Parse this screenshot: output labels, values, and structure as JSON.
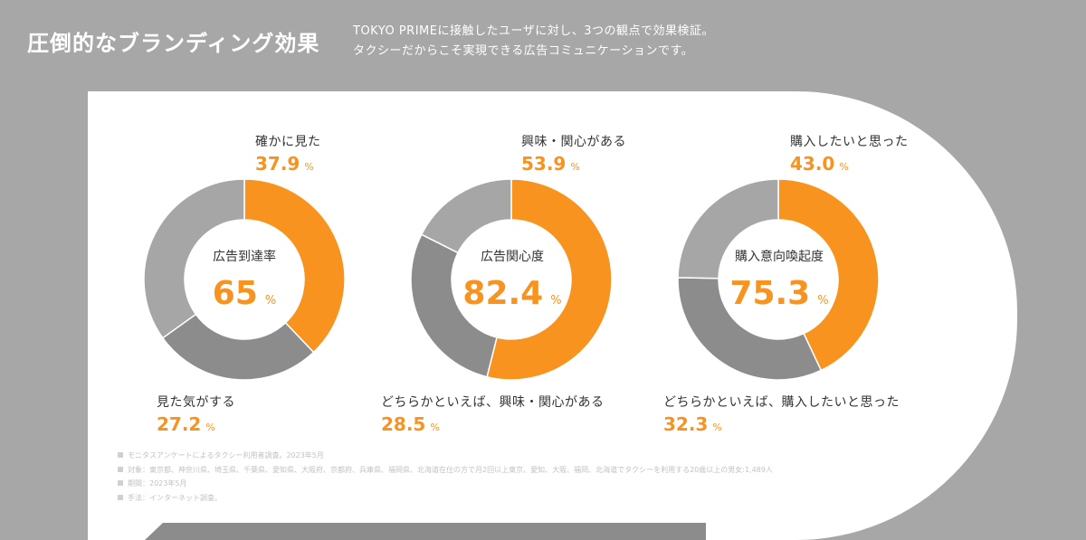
{
  "header": {
    "title": "圧倒的なブランディング効果",
    "subtitle_line1": "TOKYO PRIMEに接触したユーザに対し、3つの観点で効果検証。",
    "subtitle_line2": "タクシーだからこそ実現できる広告コミュニケーションです。"
  },
  "colors": {
    "background": "#a6a7a6",
    "panel": "#ffffff",
    "accent": "#f7931e",
    "series2": "#8c8c8c",
    "series3": "#a6a6a6"
  },
  "chart_data": [
    {
      "type": "pie",
      "center_label": "広告到達率",
      "center_value": "65",
      "center_unit": "%",
      "series": [
        {
          "name": "確かに見た",
          "value": 37.9,
          "value_text": "37.9",
          "unit": "%",
          "color": "#f7931e"
        },
        {
          "name": "見た気がする",
          "value": 27.2,
          "value_text": "27.2",
          "unit": "%",
          "color": "#8c8c8c"
        },
        {
          "value": 34.9,
          "color": "#a6a6a6"
        }
      ]
    },
    {
      "type": "pie",
      "center_label": "広告関心度",
      "center_value": "82.4",
      "center_unit": "%",
      "series": [
        {
          "name": "興味・関心がある",
          "value": 53.9,
          "value_text": "53.9",
          "unit": "%",
          "color": "#f7931e"
        },
        {
          "name": "どちらかといえば、興味・関心がある",
          "value": 28.5,
          "value_text": "28.5",
          "unit": "%",
          "color": "#8c8c8c"
        },
        {
          "value": 17.6,
          "color": "#a6a6a6"
        }
      ]
    },
    {
      "type": "pie",
      "center_label": "購入意向喚起度",
      "center_value": "75.3",
      "center_unit": "%",
      "series": [
        {
          "name": "購入したいと思った",
          "value": 43.0,
          "value_text": "43.0",
          "unit": "%",
          "color": "#f7931e"
        },
        {
          "name": "どちらかといえば、購入したいと思った",
          "value": 32.3,
          "value_text": "32.3",
          "unit": "%",
          "color": "#8c8c8c"
        },
        {
          "value": 24.7,
          "color": "#a6a6a6"
        }
      ]
    }
  ],
  "notes": [
    "モニタスアンケートによるタクシー利用者調査。2023年5月",
    "対象：東京都、神奈川県、埼玉県、千葉県、愛知県、大阪府、京都府、兵庫県、福岡県、北海道在住の方で月2回以上東京、愛知、大阪、福岡、北海道でタクシーを利用する20歳以上の男女:1,489人",
    "期間：2023年5月",
    "手法：インターネット調査。"
  ]
}
